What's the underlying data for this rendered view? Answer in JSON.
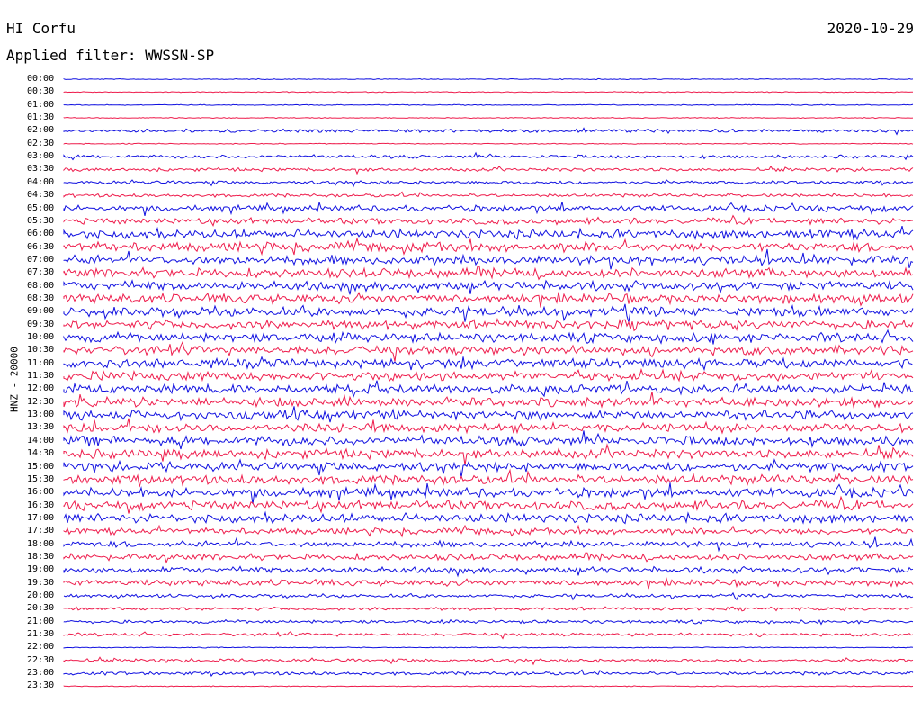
{
  "header": {
    "station": "HI Corfu",
    "date": "2020-10-29",
    "filter": "Applied filter: WWSSN-SP"
  },
  "axis": {
    "ylabel": "HNZ - 20000"
  },
  "colors": {
    "blue": "#1010e0",
    "red": "#ee1c4c"
  },
  "rows": [
    {
      "time": "00:00",
      "color": "blue",
      "level": 0
    },
    {
      "time": "00:30",
      "color": "red",
      "level": 0
    },
    {
      "time": "01:00",
      "color": "blue",
      "level": 0
    },
    {
      "time": "01:30",
      "color": "red",
      "level": 0
    },
    {
      "time": "02:00",
      "color": "blue",
      "level": 1
    },
    {
      "time": "02:30",
      "color": "red",
      "level": 0
    },
    {
      "time": "03:00",
      "color": "blue",
      "level": 1
    },
    {
      "time": "03:30",
      "color": "red",
      "level": 1
    },
    {
      "time": "04:00",
      "color": "blue",
      "level": 1
    },
    {
      "time": "04:30",
      "color": "red",
      "level": 1
    },
    {
      "time": "05:00",
      "color": "blue",
      "level": 2
    },
    {
      "time": "05:30",
      "color": "red",
      "level": 2
    },
    {
      "time": "06:00",
      "color": "blue",
      "level": 3
    },
    {
      "time": "06:30",
      "color": "red",
      "level": 3
    },
    {
      "time": "07:00",
      "color": "blue",
      "level": 3
    },
    {
      "time": "07:30",
      "color": "red",
      "level": 3
    },
    {
      "time": "08:00",
      "color": "blue",
      "level": 3
    },
    {
      "time": "08:30",
      "color": "red",
      "level": 3
    },
    {
      "time": "09:00",
      "color": "blue",
      "level": 3
    },
    {
      "time": "09:30",
      "color": "red",
      "level": 3
    },
    {
      "time": "10:00",
      "color": "blue",
      "level": 3
    },
    {
      "time": "10:30",
      "color": "red",
      "level": 3
    },
    {
      "time": "11:00",
      "color": "blue",
      "level": 3
    },
    {
      "time": "11:30",
      "color": "red",
      "level": 3
    },
    {
      "time": "12:00",
      "color": "blue",
      "level": 3
    },
    {
      "time": "12:30",
      "color": "red",
      "level": 3
    },
    {
      "time": "13:00",
      "color": "blue",
      "level": 3
    },
    {
      "time": "13:30",
      "color": "red",
      "level": 3
    },
    {
      "time": "14:00",
      "color": "blue",
      "level": 3
    },
    {
      "time": "14:30",
      "color": "red",
      "level": 3
    },
    {
      "time": "15:00",
      "color": "blue",
      "level": 3
    },
    {
      "time": "15:30",
      "color": "red",
      "level": 3
    },
    {
      "time": "16:00",
      "color": "blue",
      "level": 3
    },
    {
      "time": "16:30",
      "color": "red",
      "level": 3
    },
    {
      "time": "17:00",
      "color": "blue",
      "level": 3
    },
    {
      "time": "17:30",
      "color": "red",
      "level": 2
    },
    {
      "time": "18:00",
      "color": "blue",
      "level": 2
    },
    {
      "time": "18:30",
      "color": "red",
      "level": 2
    },
    {
      "time": "19:00",
      "color": "blue",
      "level": 2
    },
    {
      "time": "19:30",
      "color": "red",
      "level": 2
    },
    {
      "time": "20:00",
      "color": "blue",
      "level": 1
    },
    {
      "time": "20:30",
      "color": "red",
      "level": 1
    },
    {
      "time": "21:00",
      "color": "blue",
      "level": 1
    },
    {
      "time": "21:30",
      "color": "red",
      "level": 1
    },
    {
      "time": "22:00",
      "color": "blue",
      "level": 0
    },
    {
      "time": "22:30",
      "color": "red",
      "level": 1
    },
    {
      "time": "23:00",
      "color": "blue",
      "level": 1
    },
    {
      "time": "23:30",
      "color": "red",
      "level": 0
    }
  ]
}
